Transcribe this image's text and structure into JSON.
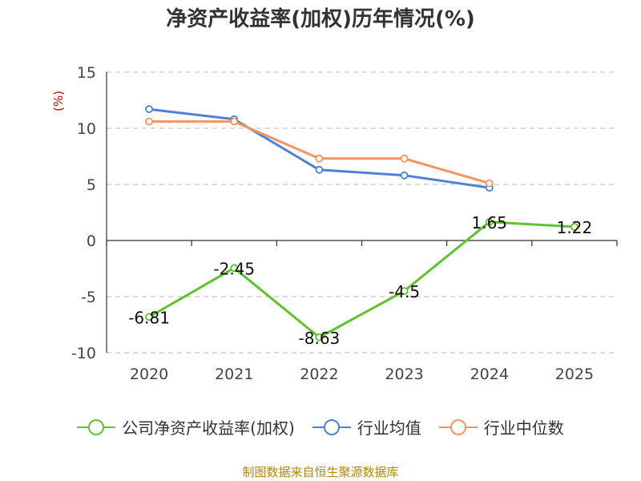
{
  "chart_data": {
    "type": "line",
    "title": "净资产收益率(加权)历年情况(%)",
    "ylabel": "(%)",
    "xlabel": "",
    "categories": [
      "2020",
      "2021",
      "2022",
      "2023",
      "2024",
      "2025"
    ],
    "ylim": [
      -10,
      15
    ],
    "yticks": [
      15,
      10,
      5,
      0,
      -5,
      -10
    ],
    "ytick_labels": [
      "15",
      "10",
      "5",
      "0",
      "-5",
      "-10"
    ],
    "grid": "dashed-horizontal",
    "legend_position": "bottom",
    "series": [
      {
        "name": "公司净资产收益率(加权)",
        "color": "#5ec42e",
        "values": [
          -6.81,
          -2.45,
          -8.63,
          -4.5,
          1.65,
          1.22
        ],
        "data_labels": [
          "-6.81",
          "-2.45",
          "-8.63",
          "-4.5",
          "1.65",
          "1.22"
        ]
      },
      {
        "name": "行业均值",
        "color": "#4f7fdd",
        "values": [
          11.7,
          10.8,
          6.3,
          5.8,
          4.7,
          null
        ]
      },
      {
        "name": "行业中位数",
        "color": "#f59362",
        "values": [
          10.6,
          10.6,
          7.3,
          7.3,
          5.1,
          null
        ]
      }
    ]
  },
  "source": "制图数据来自恒生聚源数据库"
}
